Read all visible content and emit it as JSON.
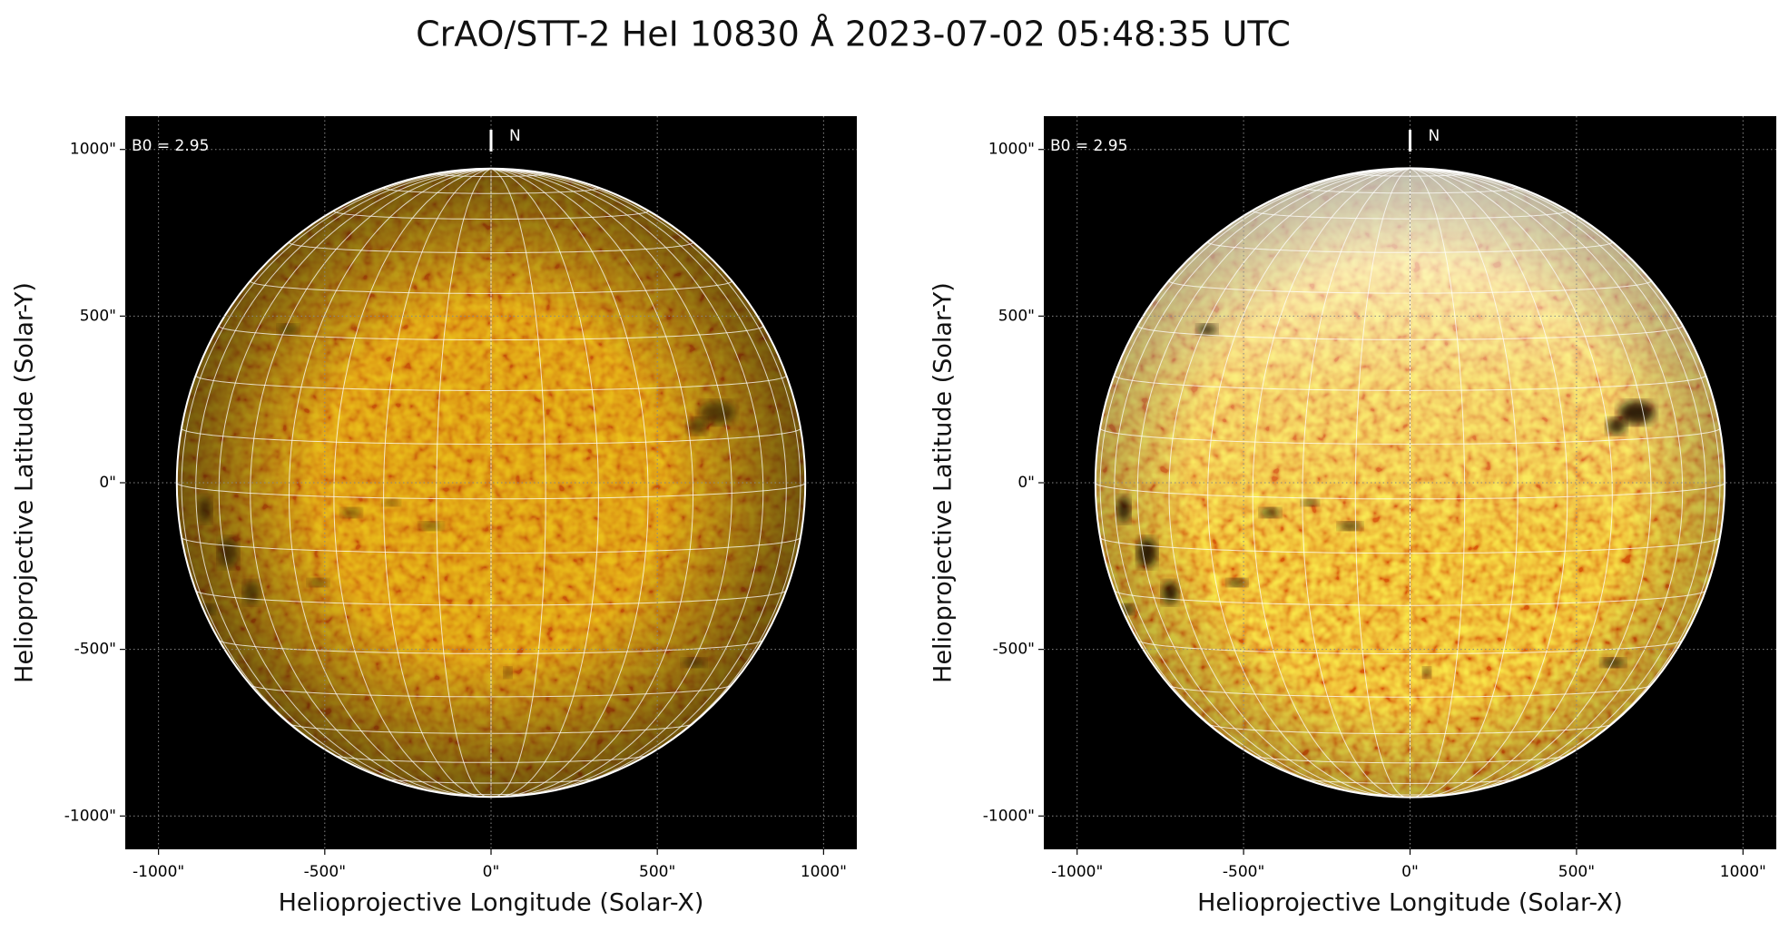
{
  "title": "CrAO/STT-2 HeI 10830 Å 2023-07-02 05:48:35 UTC",
  "chart_data": [
    {
      "type": "image",
      "xlabel": "Helioprojective Longitude (Solar-X)",
      "ylabel": "Helioprojective Latitude (Solar-Y)",
      "b0_label": "B0 = 2.95",
      "north_label": "N",
      "b0": 2.95,
      "disk_radius": 945,
      "grid_step": 10,
      "grid": true,
      "color": "#d98a12",
      "xlim": [
        -1100,
        1100
      ],
      "ylim": [
        -1100,
        1100
      ],
      "xticks": [
        {
          "value": -1000,
          "label": "-1000\""
        },
        {
          "value": -500,
          "label": "-500\""
        },
        {
          "value": 0,
          "label": "0\""
        },
        {
          "value": 500,
          "label": "500\""
        },
        {
          "value": 1000,
          "label": "1000\""
        }
      ],
      "yticks": [
        {
          "value": -1000,
          "label": "-1000\""
        },
        {
          "value": -500,
          "label": "-500\""
        },
        {
          "value": 0,
          "label": "0\""
        },
        {
          "value": 500,
          "label": "500\""
        },
        {
          "value": 1000,
          "label": "1000\""
        }
      ]
    },
    {
      "type": "image",
      "xlabel": "Helioprojective Longitude (Solar-X)",
      "ylabel": "Helioprojective Latitude (Solar-Y)",
      "b0_label": "B0 = 2.95",
      "north_label": "N",
      "b0": 2.95,
      "disk_radius": 945,
      "grid_step": 10,
      "grid": true,
      "color": "#e9a02a",
      "xlim": [
        -1100,
        1100
      ],
      "ylim": [
        -1100,
        1100
      ],
      "xticks": [
        {
          "value": -1000,
          "label": "-1000\""
        },
        {
          "value": -500,
          "label": "-500\""
        },
        {
          "value": 0,
          "label": "0\""
        },
        {
          "value": 500,
          "label": "500\""
        },
        {
          "value": 1000,
          "label": "1000\""
        }
      ],
      "yticks": [
        {
          "value": -1000,
          "label": "-1000\""
        },
        {
          "value": -500,
          "label": "-500\""
        },
        {
          "value": 0,
          "label": "0\""
        },
        {
          "value": 500,
          "label": "500\""
        },
        {
          "value": 1000,
          "label": "1000\""
        }
      ]
    }
  ]
}
